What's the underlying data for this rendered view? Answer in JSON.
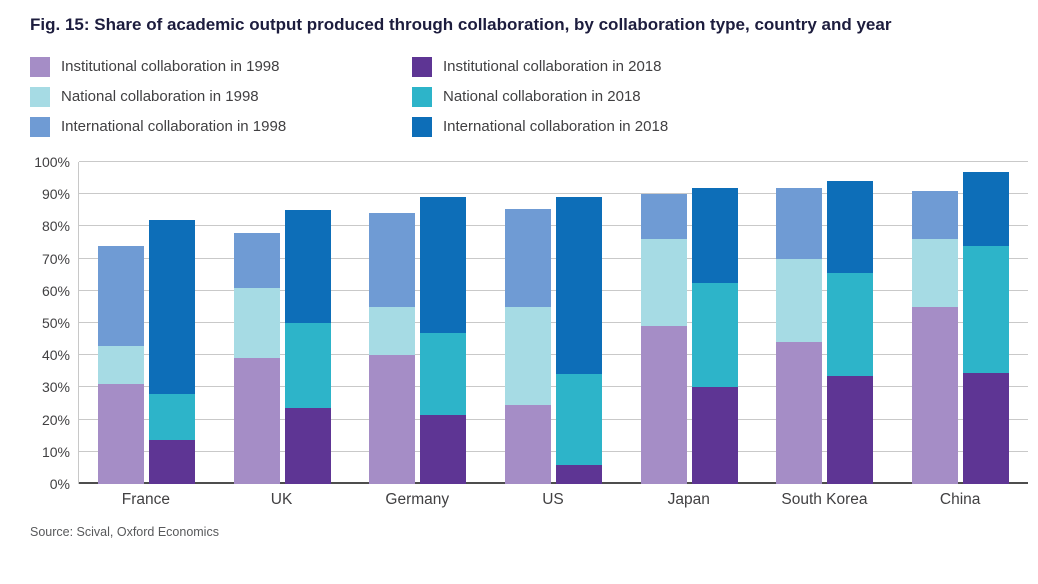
{
  "title": "Fig. 15: Share of academic output produced through collaboration, by collaboration type, country and year",
  "source": "Source: Scival, Oxford Economics",
  "colors": {
    "institutional_1998": "#a58dc6",
    "national_1998": "#a6dbe4",
    "international_1998": "#6f9bd4",
    "institutional_2018": "#5e3594",
    "national_2018": "#2db4c9",
    "international_2018": "#0d6eb8",
    "gridline": "#c9c9c9",
    "axis": "#4d4d4d",
    "title_text": "#1d1d3e"
  },
  "legend": [
    {
      "label": "Institutional collaboration in 1998",
      "color": "#a58dc6"
    },
    {
      "label": "National collaboration in 1998",
      "color": "#a6dbe4"
    },
    {
      "label": "International collaboration in 1998",
      "color": "#6f9bd4"
    },
    {
      "label": "Institutional collaboration in 2018",
      "color": "#5e3594"
    },
    {
      "label": "National collaboration in 2018",
      "color": "#2db4c9"
    },
    {
      "label": "International collaboration in 2018",
      "color": "#0d6eb8"
    }
  ],
  "chart_data": {
    "type": "bar",
    "stacked": true,
    "title": "Fig. 15: Share of academic output produced through collaboration, by collaboration type, country and year",
    "xlabel": "",
    "ylabel": "",
    "ylim": [
      0,
      100
    ],
    "ytick_step": 10,
    "ytick_labels": [
      "0%",
      "10%",
      "20%",
      "30%",
      "40%",
      "50%",
      "60%",
      "70%",
      "80%",
      "90%",
      "100%"
    ],
    "grid": true,
    "legend_position": "top",
    "categories": [
      "France",
      "UK",
      "Germany",
      "US",
      "Japan",
      "South Korea",
      "China"
    ],
    "bar_groups_per_category": [
      "1998",
      "2018"
    ],
    "series": [
      {
        "name": "Institutional collaboration in 1998",
        "year": "1998",
        "color": "#a58dc6",
        "values": [
          31,
          39,
          40,
          24.5,
          49,
          44,
          55
        ]
      },
      {
        "name": "National collaboration in 1998",
        "year": "1998",
        "color": "#a6dbe4",
        "values": [
          12,
          22,
          15,
          30.5,
          27,
          26,
          21
        ]
      },
      {
        "name": "International collaboration in 1998",
        "year": "1998",
        "color": "#6f9bd4",
        "values": [
          31,
          17,
          29,
          30.5,
          14,
          22,
          15
        ]
      },
      {
        "name": "Institutional collaboration in 2018",
        "year": "2018",
        "color": "#5e3594",
        "values": [
          13.5,
          23.5,
          21.5,
          6,
          30,
          33.5,
          34.5
        ]
      },
      {
        "name": "National collaboration in 2018",
        "year": "2018",
        "color": "#2db4c9",
        "values": [
          14.5,
          26.5,
          25.5,
          28,
          32.5,
          32,
          39.5
        ]
      },
      {
        "name": "International collaboration in 2018",
        "year": "2018",
        "color": "#0d6eb8",
        "values": [
          54,
          35,
          42,
          55,
          29.5,
          28.5,
          23
        ]
      }
    ],
    "stack_totals_1998": [
      74,
      78,
      84,
      85.5,
      90,
      92,
      91
    ],
    "stack_totals_2018": [
      82,
      85,
      89,
      89,
      92,
      94,
      97
    ]
  }
}
